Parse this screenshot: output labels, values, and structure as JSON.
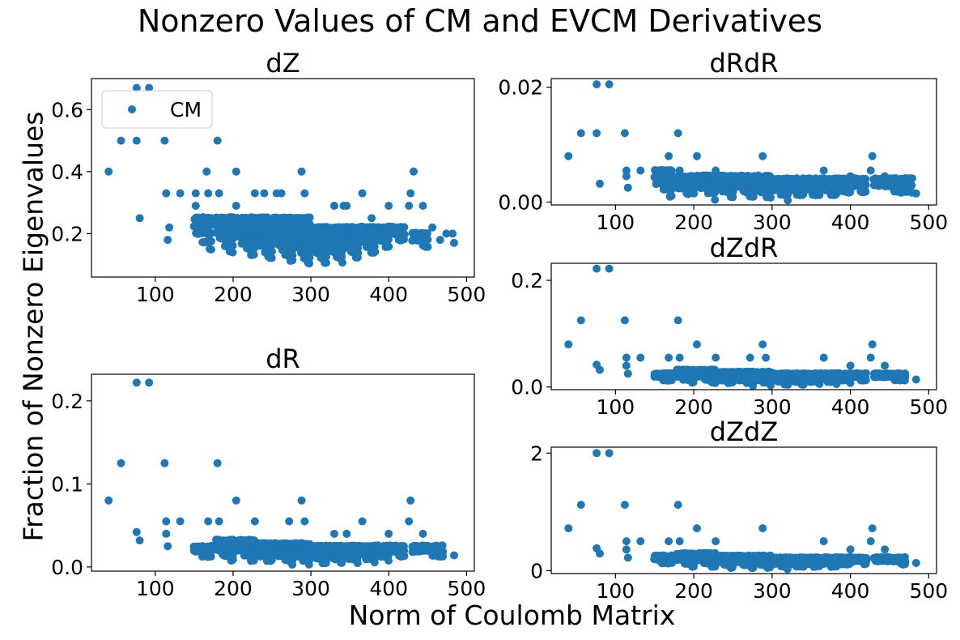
{
  "figure": {
    "title": "Nonzero Values of CM and EVCM Derivatives",
    "xlabel": "Norm of Coulomb Matrix",
    "ylabel": "Fraction of Nonzero Eigenvalues",
    "legend_label": "CM"
  },
  "colors": {
    "marker": "#1f77b4",
    "axes": "#000000",
    "background": "#ffffff"
  },
  "chart_data": [
    {
      "type": "scatter",
      "title": "dZ",
      "legend": "CM",
      "legend_position": "upper-left",
      "xlim": [
        18,
        510
      ],
      "ylim": [
        0.06,
        0.7
      ],
      "xticks": [
        100,
        200,
        300,
        400,
        500
      ],
      "yticks": [
        0.2,
        0.4,
        0.6
      ],
      "ytick_labels": [
        "0.2",
        "0.4",
        "0.6"
      ],
      "x": [
        40,
        56,
        76,
        92,
        76,
        80,
        112,
        114,
        118,
        116,
        132,
        152,
        152,
        156,
        166,
        168,
        180,
        168,
        182,
        204,
        204,
        228,
        240,
        256,
        262,
        288,
        292,
        330,
        342,
        346,
        366,
        378,
        400,
        428,
        432,
        426,
        444,
        482,
        484,
        456,
        474,
        466
      ],
      "y": [
        0.4,
        0.5,
        0.5,
        0.67,
        0.67,
        0.25,
        0.5,
        0.33,
        0.22,
        0.18,
        0.33,
        0.33,
        0.29,
        0.22,
        0.4,
        0.33,
        0.5,
        0.22,
        0.33,
        0.4,
        0.29,
        0.33,
        0.33,
        0.33,
        0.33,
        0.4,
        0.33,
        0.29,
        0.29,
        0.29,
        0.33,
        0.25,
        0.29,
        0.33,
        0.4,
        0.29,
        0.29,
        0.2,
        0.17,
        0.22,
        0.2,
        0.18
      ],
      "clusters": [
        {
          "xmin": 150,
          "xmax": 172,
          "ymin": 0.14,
          "ymax": 0.25,
          "step": 0.025
        },
        {
          "xmin": 178,
          "xmax": 202,
          "ymin": 0.12,
          "ymax": 0.25,
          "step": 0.022
        },
        {
          "xmin": 205,
          "xmax": 228,
          "ymin": 0.11,
          "ymax": 0.25,
          "step": 0.02
        },
        {
          "xmin": 228,
          "xmax": 252,
          "ymin": 0.1,
          "ymax": 0.25,
          "step": 0.018
        },
        {
          "xmin": 252,
          "xmax": 278,
          "ymin": 0.095,
          "ymax": 0.25,
          "step": 0.017
        },
        {
          "xmin": 276,
          "xmax": 300,
          "ymin": 0.09,
          "ymax": 0.25,
          "step": 0.016
        },
        {
          "xmin": 298,
          "xmax": 322,
          "ymin": 0.095,
          "ymax": 0.22,
          "step": 0.016
        },
        {
          "xmin": 318,
          "xmax": 342,
          "ymin": 0.1,
          "ymax": 0.22,
          "step": 0.016
        },
        {
          "xmin": 338,
          "xmax": 362,
          "ymin": 0.11,
          "ymax": 0.22,
          "step": 0.016
        },
        {
          "xmin": 360,
          "xmax": 382,
          "ymin": 0.13,
          "ymax": 0.22,
          "step": 0.016
        },
        {
          "xmin": 380,
          "xmax": 400,
          "ymin": 0.15,
          "ymax": 0.22,
          "step": 0.02
        },
        {
          "xmin": 400,
          "xmax": 420,
          "ymin": 0.17,
          "ymax": 0.22,
          "step": 0.02
        },
        {
          "xmin": 430,
          "xmax": 450,
          "ymin": 0.15,
          "ymax": 0.2,
          "step": 0.02
        }
      ]
    },
    {
      "type": "scatter",
      "title": "dR",
      "xlim": [
        18,
        510
      ],
      "ylim": [
        -0.005,
        0.232
      ],
      "xticks": [
        100,
        200,
        300,
        400,
        500
      ],
      "yticks": [
        0.0,
        0.1,
        0.2
      ],
      "ytick_labels": [
        "0.0",
        "0.1",
        "0.2"
      ],
      "x": [
        40,
        56,
        76,
        92,
        76,
        80,
        112,
        114,
        114,
        116,
        132,
        180,
        168,
        182,
        204,
        228,
        272,
        288,
        292,
        330,
        346,
        366,
        400,
        428,
        426,
        444,
        484
      ],
      "y": [
        0.08,
        0.125,
        0.222,
        0.222,
        0.042,
        0.032,
        0.125,
        0.055,
        0.04,
        0.025,
        0.055,
        0.125,
        0.055,
        0.055,
        0.08,
        0.055,
        0.055,
        0.08,
        0.055,
        0.04,
        0.04,
        0.055,
        0.04,
        0.08,
        0.055,
        0.04,
        0.014
      ],
      "clusters": [
        {
          "xmin": 150,
          "xmax": 172,
          "ymin": 0.008,
          "ymax": 0.025,
          "step": 0.006
        },
        {
          "xmin": 178,
          "xmax": 202,
          "ymin": 0.004,
          "ymax": 0.032,
          "step": 0.006
        },
        {
          "xmin": 205,
          "xmax": 228,
          "ymin": 0.003,
          "ymax": 0.032,
          "step": 0.006
        },
        {
          "xmin": 228,
          "xmax": 252,
          "ymin": 0.002,
          "ymax": 0.028,
          "step": 0.005
        },
        {
          "xmin": 252,
          "xmax": 278,
          "ymin": 0.002,
          "ymax": 0.028,
          "step": 0.005
        },
        {
          "xmin": 276,
          "xmax": 300,
          "ymin": 0.001,
          "ymax": 0.028,
          "step": 0.005
        },
        {
          "xmin": 298,
          "xmax": 322,
          "ymin": 0.001,
          "ymax": 0.025,
          "step": 0.005
        },
        {
          "xmin": 318,
          "xmax": 342,
          "ymin": 0.002,
          "ymax": 0.025,
          "step": 0.005
        },
        {
          "xmin": 338,
          "xmax": 362,
          "ymin": 0.003,
          "ymax": 0.025,
          "step": 0.005
        },
        {
          "xmin": 360,
          "xmax": 382,
          "ymin": 0.004,
          "ymax": 0.025,
          "step": 0.005
        },
        {
          "xmin": 380,
          "xmax": 400,
          "ymin": 0.006,
          "ymax": 0.025,
          "step": 0.006
        },
        {
          "xmin": 400,
          "xmax": 420,
          "ymin": 0.01,
          "ymax": 0.025,
          "step": 0.006
        },
        {
          "xmin": 430,
          "xmax": 470,
          "ymin": 0.01,
          "ymax": 0.025,
          "step": 0.006
        }
      ]
    },
    {
      "type": "scatter",
      "title": "dRdR",
      "xlim": [
        18,
        510
      ],
      "ylim": [
        -0.0005,
        0.0215
      ],
      "xticks": [
        100,
        200,
        300,
        400,
        500
      ],
      "yticks": [
        0.0,
        0.02
      ],
      "ytick_labels": [
        "0.00",
        "0.02"
      ],
      "x": [
        40,
        56,
        76,
        92,
        76,
        80,
        112,
        114,
        114,
        116,
        132,
        180,
        168,
        182,
        204,
        228,
        288,
        366,
        400,
        428,
        426,
        444,
        484
      ],
      "y": [
        0.008,
        0.012,
        0.0205,
        0.0205,
        0.012,
        0.0032,
        0.012,
        0.0055,
        0.0045,
        0.0025,
        0.0055,
        0.012,
        0.008,
        0.0055,
        0.008,
        0.0055,
        0.008,
        0.0055,
        0.0045,
        0.008,
        0.0055,
        0.0045,
        0.0015
      ],
      "clusters": [
        {
          "xmin": 150,
          "xmax": 172,
          "ymin": 0.0008,
          "ymax": 0.0055,
          "step": 0.0011
        },
        {
          "xmin": 178,
          "xmax": 202,
          "ymin": 0.0005,
          "ymax": 0.0045,
          "step": 0.001
        },
        {
          "xmin": 205,
          "xmax": 228,
          "ymin": 0.0004,
          "ymax": 0.0045,
          "step": 0.001
        },
        {
          "xmin": 228,
          "xmax": 252,
          "ymin": 0.0003,
          "ymax": 0.0045,
          "step": 0.0009
        },
        {
          "xmin": 252,
          "xmax": 278,
          "ymin": 0.0003,
          "ymax": 0.0045,
          "step": 0.0009
        },
        {
          "xmin": 276,
          "xmax": 300,
          "ymin": 0.0002,
          "ymax": 0.0045,
          "step": 0.0009
        },
        {
          "xmin": 298,
          "xmax": 322,
          "ymin": 0.0002,
          "ymax": 0.004,
          "step": 0.0009
        },
        {
          "xmin": 318,
          "xmax": 342,
          "ymin": 0.0003,
          "ymax": 0.004,
          "step": 0.0009
        },
        {
          "xmin": 338,
          "xmax": 362,
          "ymin": 0.0004,
          "ymax": 0.004,
          "step": 0.0009
        },
        {
          "xmin": 360,
          "xmax": 382,
          "ymin": 0.0006,
          "ymax": 0.004,
          "step": 0.0009
        },
        {
          "xmin": 380,
          "xmax": 400,
          "ymin": 0.0008,
          "ymax": 0.004,
          "step": 0.0011
        },
        {
          "xmin": 400,
          "xmax": 420,
          "ymin": 0.0012,
          "ymax": 0.004,
          "step": 0.0011
        },
        {
          "xmin": 430,
          "xmax": 480,
          "ymin": 0.001,
          "ymax": 0.004,
          "step": 0.0011
        }
      ]
    },
    {
      "type": "scatter",
      "title": "dZdR",
      "xlim": [
        18,
        510
      ],
      "ylim": [
        -0.005,
        0.232
      ],
      "xticks": [
        100,
        200,
        300,
        400,
        500
      ],
      "yticks": [
        0.0,
        0.2
      ],
      "ytick_labels": [
        "0.0",
        "0.2"
      ],
      "x": [
        40,
        56,
        76,
        92,
        76,
        80,
        112,
        114,
        114,
        116,
        132,
        180,
        168,
        182,
        204,
        228,
        272,
        288,
        292,
        366,
        400,
        428,
        426,
        444,
        484
      ],
      "y": [
        0.08,
        0.125,
        0.222,
        0.222,
        0.042,
        0.032,
        0.125,
        0.055,
        0.04,
        0.025,
        0.055,
        0.125,
        0.055,
        0.055,
        0.08,
        0.055,
        0.055,
        0.08,
        0.055,
        0.055,
        0.04,
        0.08,
        0.055,
        0.04,
        0.014
      ],
      "clusters": [
        {
          "xmin": 150,
          "xmax": 172,
          "ymin": 0.008,
          "ymax": 0.025,
          "step": 0.006
        },
        {
          "xmin": 178,
          "xmax": 202,
          "ymin": 0.004,
          "ymax": 0.032,
          "step": 0.006
        },
        {
          "xmin": 205,
          "xmax": 228,
          "ymin": 0.003,
          "ymax": 0.032,
          "step": 0.006
        },
        {
          "xmin": 228,
          "xmax": 252,
          "ymin": 0.002,
          "ymax": 0.028,
          "step": 0.005
        },
        {
          "xmin": 252,
          "xmax": 278,
          "ymin": 0.002,
          "ymax": 0.028,
          "step": 0.005
        },
        {
          "xmin": 276,
          "xmax": 300,
          "ymin": 0.001,
          "ymax": 0.028,
          "step": 0.005
        },
        {
          "xmin": 298,
          "xmax": 322,
          "ymin": 0.001,
          "ymax": 0.025,
          "step": 0.005
        },
        {
          "xmin": 318,
          "xmax": 342,
          "ymin": 0.002,
          "ymax": 0.025,
          "step": 0.005
        },
        {
          "xmin": 338,
          "xmax": 362,
          "ymin": 0.003,
          "ymax": 0.025,
          "step": 0.005
        },
        {
          "xmin": 360,
          "xmax": 382,
          "ymin": 0.004,
          "ymax": 0.025,
          "step": 0.005
        },
        {
          "xmin": 380,
          "xmax": 400,
          "ymin": 0.006,
          "ymax": 0.025,
          "step": 0.006
        },
        {
          "xmin": 400,
          "xmax": 420,
          "ymin": 0.01,
          "ymax": 0.025,
          "step": 0.006
        },
        {
          "xmin": 430,
          "xmax": 470,
          "ymin": 0.01,
          "ymax": 0.025,
          "step": 0.006
        }
      ]
    },
    {
      "type": "scatter",
      "title": "dZdZ",
      "xlim": [
        18,
        510
      ],
      "ylim": [
        -0.05,
        2.1
      ],
      "xticks": [
        100,
        200,
        300,
        400,
        500
      ],
      "yticks": [
        0,
        2
      ],
      "ytick_labels": [
        "0",
        "2"
      ],
      "x": [
        40,
        56,
        76,
        92,
        76,
        80,
        112,
        114,
        114,
        116,
        132,
        180,
        168,
        182,
        204,
        228,
        288,
        366,
        400,
        428,
        426,
        444,
        484
      ],
      "y": [
        0.72,
        1.12,
        2.0,
        2.0,
        0.38,
        0.29,
        1.12,
        0.5,
        0.36,
        0.22,
        0.5,
        1.12,
        0.5,
        0.5,
        0.72,
        0.5,
        0.72,
        0.5,
        0.36,
        0.72,
        0.5,
        0.36,
        0.13
      ],
      "clusters": [
        {
          "xmin": 150,
          "xmax": 172,
          "ymin": 0.07,
          "ymax": 0.25,
          "step": 0.06
        },
        {
          "xmin": 178,
          "xmax": 202,
          "ymin": 0.04,
          "ymax": 0.29,
          "step": 0.055
        },
        {
          "xmin": 205,
          "xmax": 228,
          "ymin": 0.03,
          "ymax": 0.29,
          "step": 0.055
        },
        {
          "xmin": 228,
          "xmax": 252,
          "ymin": 0.02,
          "ymax": 0.25,
          "step": 0.05
        },
        {
          "xmin": 252,
          "xmax": 278,
          "ymin": 0.02,
          "ymax": 0.25,
          "step": 0.05
        },
        {
          "xmin": 276,
          "xmax": 300,
          "ymin": 0.01,
          "ymax": 0.25,
          "step": 0.05
        },
        {
          "xmin": 298,
          "xmax": 322,
          "ymin": 0.01,
          "ymax": 0.22,
          "step": 0.05
        },
        {
          "xmin": 318,
          "xmax": 342,
          "ymin": 0.02,
          "ymax": 0.22,
          "step": 0.05
        },
        {
          "xmin": 338,
          "xmax": 362,
          "ymin": 0.03,
          "ymax": 0.22,
          "step": 0.05
        },
        {
          "xmin": 360,
          "xmax": 382,
          "ymin": 0.04,
          "ymax": 0.22,
          "step": 0.05
        },
        {
          "xmin": 380,
          "xmax": 400,
          "ymin": 0.06,
          "ymax": 0.22,
          "step": 0.055
        },
        {
          "xmin": 400,
          "xmax": 420,
          "ymin": 0.1,
          "ymax": 0.22,
          "step": 0.055
        },
        {
          "xmin": 430,
          "xmax": 470,
          "ymin": 0.1,
          "ymax": 0.22,
          "step": 0.055
        }
      ]
    }
  ]
}
